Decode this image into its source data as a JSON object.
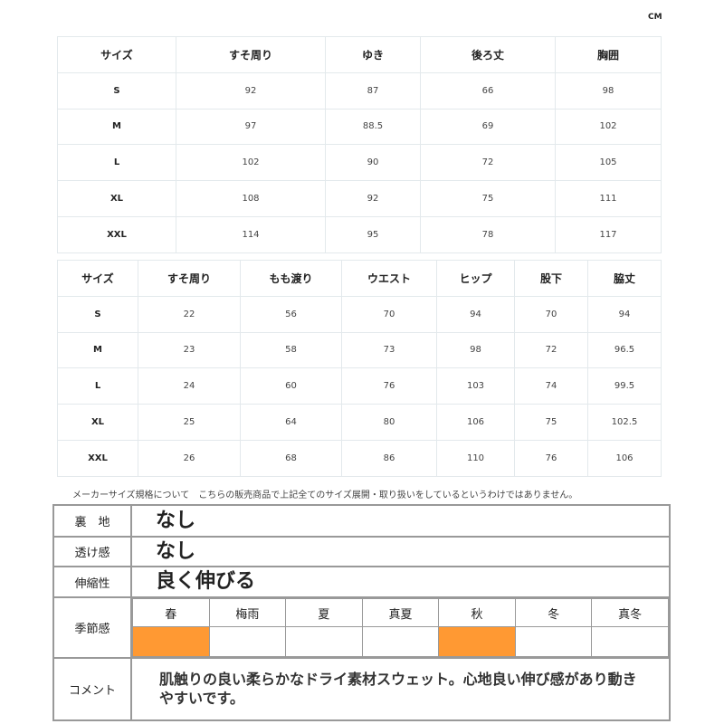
{
  "unit": "CM",
  "top_table": {
    "headers": [
      "サイズ",
      "すそ周り",
      "ゆき",
      "後ろ丈",
      "胸囲"
    ],
    "rows": [
      [
        "S",
        "92",
        "87",
        "66",
        "98"
      ],
      [
        "M",
        "97",
        "88.5",
        "69",
        "102"
      ],
      [
        "L",
        "102",
        "90",
        "72",
        "105"
      ],
      [
        "XL",
        "108",
        "92",
        "75",
        "111"
      ],
      [
        "XXL",
        "114",
        "95",
        "78",
        "117"
      ]
    ]
  },
  "bottom_table": {
    "headers": [
      "サイズ",
      "すそ周り",
      "もも渡り",
      "ウエスト",
      "ヒップ",
      "股下",
      "脇丈"
    ],
    "rows": [
      [
        "S",
        "22",
        "56",
        "70",
        "94",
        "70",
        "94"
      ],
      [
        "M",
        "23",
        "58",
        "73",
        "98",
        "72",
        "96.5"
      ],
      [
        "L",
        "24",
        "60",
        "76",
        "103",
        "74",
        "99.5"
      ],
      [
        "XL",
        "25",
        "64",
        "80",
        "106",
        "75",
        "102.5"
      ],
      [
        "XXL",
        "26",
        "68",
        "86",
        "110",
        "76",
        "106"
      ]
    ]
  },
  "note": "メーカーサイズ規格について　こちらの販売商品で上記全てのサイズ展開・取り扱いをしているというわけではありません。",
  "info": {
    "lining": {
      "label": "裏　地",
      "value": "なし"
    },
    "sheer": {
      "label": "透け感",
      "value": "なし"
    },
    "stretch": {
      "label": "伸縮性",
      "value": "良く伸びる"
    },
    "season": {
      "label": "季節感",
      "items": [
        {
          "name": "春",
          "selected": true
        },
        {
          "name": "梅雨",
          "selected": false
        },
        {
          "name": "夏",
          "selected": false
        },
        {
          "name": "真夏",
          "selected": false
        },
        {
          "name": "秋",
          "selected": true
        },
        {
          "name": "冬",
          "selected": false
        },
        {
          "name": "真冬",
          "selected": false
        }
      ],
      "highlight_color": "#ff9933"
    },
    "comment": {
      "label": "コメント",
      "value": "肌触りの良い柔らかなドライ素材スウェット。心地良い伸び感があり動きやすいです。"
    }
  }
}
